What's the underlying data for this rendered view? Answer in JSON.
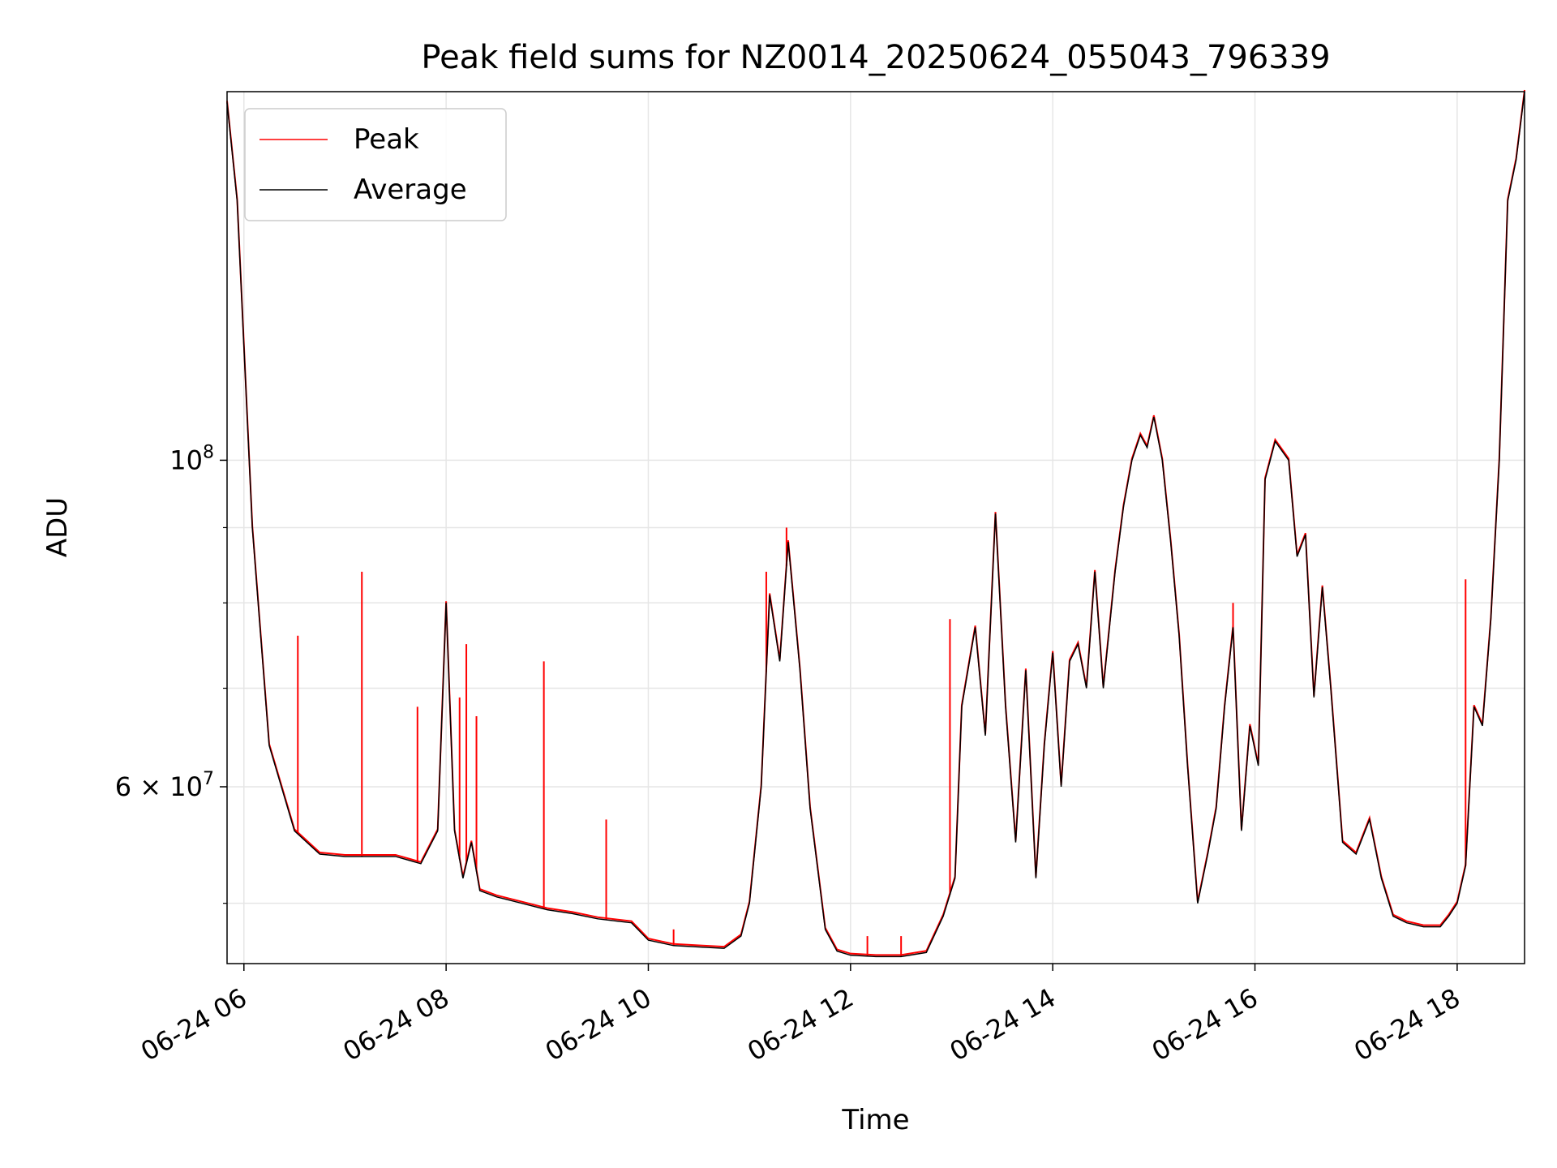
{
  "chart_data": {
    "type": "line",
    "title": "Peak field sums for NZ0014_20250624_055043_796339",
    "xlabel": "Time",
    "ylabel": "ADU",
    "y_scale": "log",
    "xlim": [
      "2025-06-24 05:50",
      "2025-06-24 18:40"
    ],
    "ylim": [
      45500000,
      178000000
    ],
    "x_ticks": [
      "06-24 06",
      "06-24 08",
      "06-24 10",
      "06-24 12",
      "06-24 14",
      "06-24 16",
      "06-24 18"
    ],
    "y_tick_labels": [
      {
        "value": 100000000,
        "label": "10^8"
      },
      {
        "value": 60000000,
        "label": "6 × 10^7"
      }
    ],
    "y_minor_ticks": [
      50000000,
      70000000,
      80000000,
      90000000
    ],
    "grid": true,
    "legend": {
      "placement": "top-left",
      "entries": [
        "Peak",
        "Average"
      ]
    },
    "series": [
      {
        "name": "Average",
        "color": "#000000",
        "x": [
          "2025-06-24 05:50",
          "2025-06-24 05:56",
          "2025-06-24 06:05",
          "2025-06-24 06:15",
          "2025-06-24 06:30",
          "2025-06-24 06:45",
          "2025-06-24 07:00",
          "2025-06-24 07:15",
          "2025-06-24 07:30",
          "2025-06-24 07:45",
          "2025-06-24 07:55",
          "2025-06-24 08:00",
          "2025-06-24 08:05",
          "2025-06-24 08:10",
          "2025-06-24 08:15",
          "2025-06-24 08:20",
          "2025-06-24 08:30",
          "2025-06-24 08:45",
          "2025-06-24 09:00",
          "2025-06-24 09:15",
          "2025-06-24 09:30",
          "2025-06-24 09:50",
          "2025-06-24 10:00",
          "2025-06-24 10:15",
          "2025-06-24 10:30",
          "2025-06-24 10:45",
          "2025-06-24 10:55",
          "2025-06-24 11:00",
          "2025-06-24 11:07",
          "2025-06-24 11:12",
          "2025-06-24 11:18",
          "2025-06-24 11:23",
          "2025-06-24 11:30",
          "2025-06-24 11:36",
          "2025-06-24 11:45",
          "2025-06-24 11:52",
          "2025-06-24 12:00",
          "2025-06-24 12:15",
          "2025-06-24 12:30",
          "2025-06-24 12:45",
          "2025-06-24 12:55",
          "2025-06-24 13:02",
          "2025-06-24 13:06",
          "2025-06-24 13:14",
          "2025-06-24 13:20",
          "2025-06-24 13:26",
          "2025-06-24 13:32",
          "2025-06-24 13:38",
          "2025-06-24 13:44",
          "2025-06-24 13:50",
          "2025-06-24 13:55",
          "2025-06-24 14:00",
          "2025-06-24 14:05",
          "2025-06-24 14:10",
          "2025-06-24 14:15",
          "2025-06-24 14:20",
          "2025-06-24 14:25",
          "2025-06-24 14:30",
          "2025-06-24 14:37",
          "2025-06-24 14:42",
          "2025-06-24 14:47",
          "2025-06-24 14:52",
          "2025-06-24 14:56",
          "2025-06-24 15:00",
          "2025-06-24 15:05",
          "2025-06-24 15:10",
          "2025-06-24 15:15",
          "2025-06-24 15:20",
          "2025-06-24 15:26",
          "2025-06-24 15:32",
          "2025-06-24 15:37",
          "2025-06-24 15:42",
          "2025-06-24 15:47",
          "2025-06-24 15:52",
          "2025-06-24 15:57",
          "2025-06-24 16:02",
          "2025-06-24 16:06",
          "2025-06-24 16:12",
          "2025-06-24 16:20",
          "2025-06-24 16:25",
          "2025-06-24 16:30",
          "2025-06-24 16:35",
          "2025-06-24 16:40",
          "2025-06-24 16:45",
          "2025-06-24 16:52",
          "2025-06-24 17:00",
          "2025-06-24 17:08",
          "2025-06-24 17:15",
          "2025-06-24 17:22",
          "2025-06-24 17:30",
          "2025-06-24 17:40",
          "2025-06-24 17:50",
          "2025-06-24 17:55",
          "2025-06-24 18:00",
          "2025-06-24 18:05",
          "2025-06-24 18:10",
          "2025-06-24 18:15",
          "2025-06-24 18:20",
          "2025-06-24 18:25",
          "2025-06-24 18:30",
          "2025-06-24 18:35",
          "2025-06-24 18:40"
        ],
        "y": [
          175000000,
          150000000,
          90000000,
          64000000,
          56000000,
          54000000,
          53800000,
          53800000,
          53800000,
          53200000,
          56000000,
          80000000,
          56000000,
          52000000,
          55000000,
          51000000,
          50500000,
          50000000,
          49500000,
          49200000,
          48800000,
          48500000,
          47200000,
          46800000,
          46700000,
          46600000,
          47500000,
          50000000,
          60000000,
          81000000,
          73000000,
          88000000,
          72000000,
          58000000,
          48000000,
          46400000,
          46100000,
          46000000,
          46000000,
          46300000,
          49000000,
          52000000,
          68000000,
          77000000,
          65000000,
          92000000,
          68000000,
          55000000,
          72000000,
          52000000,
          64000000,
          74000000,
          60000000,
          73000000,
          75000000,
          70000000,
          84000000,
          70000000,
          84000000,
          93000000,
          100000000,
          104000000,
          102000000,
          107000000,
          100000000,
          88000000,
          76000000,
          62000000,
          50000000,
          54000000,
          58000000,
          68000000,
          77000000,
          56000000,
          66000000,
          62000000,
          97000000,
          103000000,
          100000000,
          86000000,
          89000000,
          69000000,
          82000000,
          70000000,
          55000000,
          54000000,
          57000000,
          52000000,
          49000000,
          48500000,
          48200000,
          48200000,
          49000000,
          50000000,
          53000000,
          68000000,
          66000000,
          78000000,
          100000000,
          150000000,
          160000000,
          178000000
        ]
      },
      {
        "name": "Peak",
        "color": "#ff0000",
        "x": [
          "2025-06-24 06:32",
          "2025-06-24 07:10",
          "2025-06-24 07:43",
          "2025-06-24 08:08",
          "2025-06-24 08:12",
          "2025-06-24 08:18",
          "2025-06-24 08:58",
          "2025-06-24 09:35",
          "2025-06-24 10:15",
          "2025-06-24 11:10",
          "2025-06-24 11:22",
          "2025-06-24 12:10",
          "2025-06-24 12:30",
          "2025-06-24 12:59",
          "2025-06-24 15:47",
          "2025-06-24 18:05"
        ],
        "y": [
          76000000,
          84000000,
          68000000,
          69000000,
          75000000,
          67000000,
          73000000,
          57000000,
          48000000,
          84000000,
          90000000,
          47500000,
          47500000,
          78000000,
          80000000,
          83000000
        ]
      }
    ]
  }
}
